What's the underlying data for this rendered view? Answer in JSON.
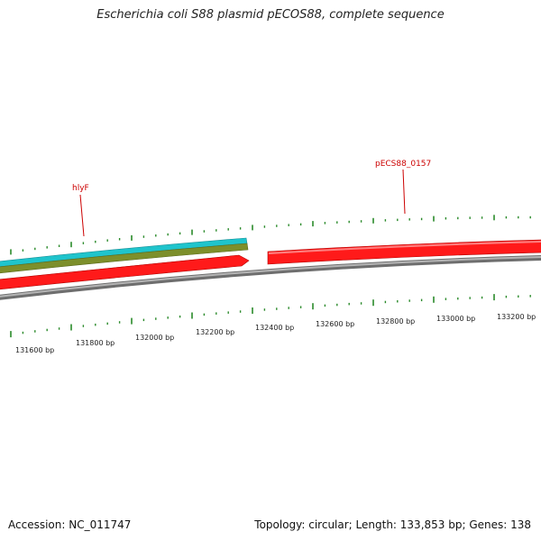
{
  "title": "Escherichia coli S88 plasmid pECOS88, complete sequence",
  "footer": {
    "accession": "Accession: NC_011747",
    "summary": "Topology: circular; Length: 133,853 bp; Genes: 138"
  },
  "colors": {
    "cds": "#ff1a1a",
    "feature_cyan": "#1fc4cc",
    "feature_olive": "#7d8f2b",
    "backbone": "#8c8c8c",
    "ticks": "#2a8a2a",
    "gene_label": "#cc0000"
  },
  "scale_labels": [
    "131600 bp",
    "131800 bp",
    "132000 bp",
    "132200 bp",
    "132400 bp",
    "132600 bp",
    "132800 bp",
    "133000 bp",
    "133200 bp"
  ],
  "gene_labels": [
    {
      "id": "hlyF",
      "text": "hlyF"
    },
    {
      "id": "pecs88-0157",
      "text": "pECS88_0157"
    }
  ]
}
